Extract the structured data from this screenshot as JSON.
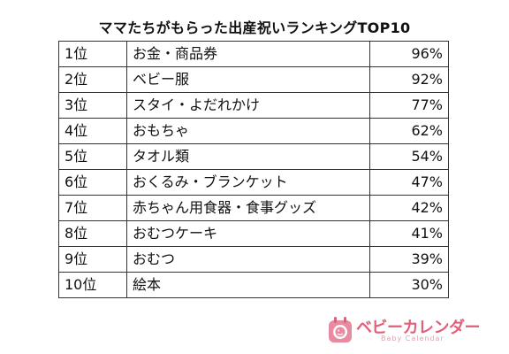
{
  "title": "ママたちがもらった出産祝いランキングTOP10",
  "rows": [
    {
      "rank": "1位",
      "item": "お金・商品券",
      "percent": "96%"
    },
    {
      "rank": "2位",
      "item": "ベビー服",
      "percent": "92%"
    },
    {
      "rank": "3位",
      "item": "スタイ・よだれかけ",
      "percent": "77%"
    },
    {
      "rank": "4位",
      "item": "おもちゃ",
      "percent": "62%"
    },
    {
      "rank": "5位",
      "item": "タオル類",
      "percent": "54%"
    },
    {
      "rank": "6位",
      "item": "おくるみ・ブランケット",
      "percent": "47%"
    },
    {
      "rank": "7位",
      "item": "赤ちゃん用食器・食事グッズ",
      "percent": "42%"
    },
    {
      "rank": "8位",
      "item": "おむつケーキ",
      "percent": "41%"
    },
    {
      "rank": "9位",
      "item": "おむつ",
      "percent": "39%"
    },
    {
      "rank": "10位",
      "item": "絵本",
      "percent": "30%"
    }
  ],
  "logo": {
    "name": "ベビーカレンダー",
    "subtitle": "Baby Calendar",
    "icon": "baby-calendar-logo-icon",
    "color": "#e0607a"
  }
}
